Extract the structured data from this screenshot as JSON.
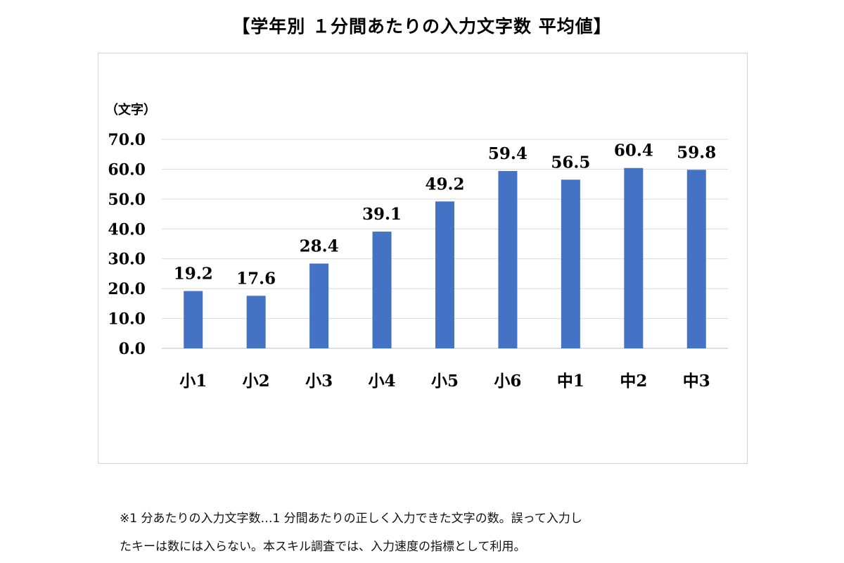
{
  "chart_data": {
    "type": "bar",
    "title": "【学年別 １分間あたりの入力文字数 平均値】",
    "ylabel": "（文字）",
    "xlabel": "",
    "categories": [
      "小1",
      "小2",
      "小3",
      "小4",
      "小5",
      "小6",
      "中1",
      "中2",
      "中3"
    ],
    "values": [
      19.2,
      17.6,
      28.4,
      39.1,
      49.2,
      59.4,
      56.5,
      60.4,
      59.8
    ],
    "data_labels": [
      "19.2",
      "17.6",
      "28.4",
      "39.1",
      "49.2",
      "59.4",
      "56.5",
      "60.4",
      "59.8"
    ],
    "yticks": [
      "0.0",
      "10.0",
      "20.0",
      "30.0",
      "40.0",
      "50.0",
      "60.0",
      "70.0"
    ],
    "ylim": [
      0,
      70
    ],
    "grid": true,
    "bar_color": "#4472c4",
    "grid_color": "#d9d9d9"
  },
  "notes": {
    "line1": "※1 分あたりの入力文字数…1 分間あたりの正しく入力できた文字の数。誤って入力し",
    "line2": "たキーは数には入らない。本スキル調査では、入力速度の指標として利用。"
  }
}
